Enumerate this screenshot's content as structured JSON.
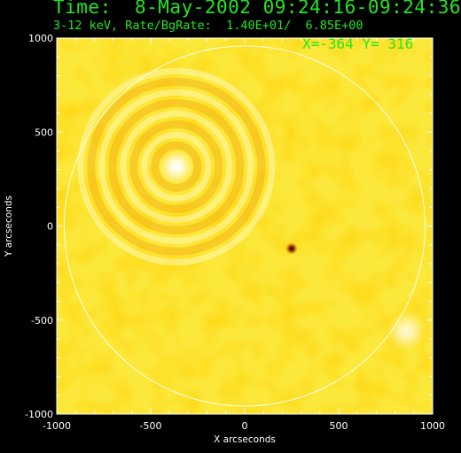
{
  "header": {
    "time_line": "Time:  8-May-2002 09:24:16-09:24:36",
    "rate_line": "3-12 keV, Rate/BgRate:  1.40E+01/  6.85E+00"
  },
  "cursor": {
    "x_label": "X=",
    "x_value": "-364",
    "y_label": "Y=",
    "y_value": "316"
  },
  "colors": {
    "text": "#22e622",
    "axis": "#ffffff",
    "background": "#000000",
    "map_base": "#fce83a"
  },
  "chart_data": {
    "type": "heatmap",
    "title": "",
    "xlabel": "X arcseconds",
    "ylabel": "Y arcseconds",
    "xlim": [
      -1000,
      1000
    ],
    "ylim": [
      -1000,
      1000
    ],
    "xticks": [
      -1000,
      -500,
      0,
      500,
      1000
    ],
    "yticks": [
      -1000,
      -500,
      0,
      500,
      1000
    ],
    "limb_circle": {
      "cx": 0,
      "cy": 0,
      "r": 960
    },
    "sources": [
      {
        "name": "bright-source",
        "x": -364,
        "y": 316,
        "kind": "bright"
      },
      {
        "name": "dark-spot",
        "x": 250,
        "y": -120,
        "kind": "dark"
      },
      {
        "name": "faint-source",
        "x": 860,
        "y": -560,
        "kind": "bright"
      }
    ]
  }
}
